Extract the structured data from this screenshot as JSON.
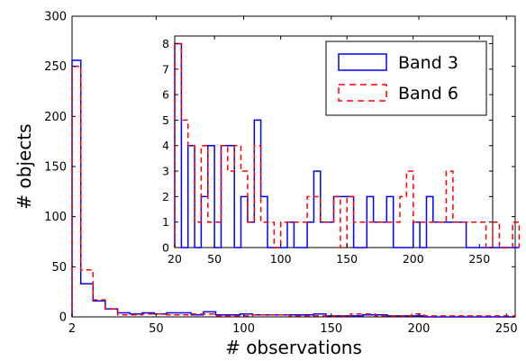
{
  "chart_data": [
    {
      "type": "histogram",
      "panel": "main",
      "xlabel": "# observations",
      "ylabel": "# objects",
      "xlim": [
        2,
        255
      ],
      "ylim": [
        0,
        300
      ],
      "xticks": [
        2,
        50,
        100,
        150,
        200,
        250
      ],
      "yticks": [
        0,
        50,
        100,
        150,
        200,
        250,
        300
      ],
      "bin_width": 7,
      "series": [
        {
          "name": "Band 3",
          "style": "solid",
          "color": "#0000ff",
          "bins": [
            {
              "x0": 2,
              "x1": 7,
              "count": 256
            },
            {
              "x0": 7,
              "x1": 14,
              "count": 33
            },
            {
              "x0": 14,
              "x1": 21,
              "count": 16
            },
            {
              "x0": 21,
              "x1": 28,
              "count": 8
            },
            {
              "x0": 28,
              "x1": 35,
              "count": 4
            },
            {
              "x0": 35,
              "x1": 42,
              "count": 3
            },
            {
              "x0": 42,
              "x1": 49,
              "count": 4
            },
            {
              "x0": 49,
              "x1": 56,
              "count": 3
            },
            {
              "x0": 56,
              "x1": 70,
              "count": 4
            },
            {
              "x0": 70,
              "x1": 77,
              "count": 2
            },
            {
              "x0": 77,
              "x1": 84,
              "count": 5
            },
            {
              "x0": 84,
              "x1": 98,
              "count": 2
            },
            {
              "x0": 98,
              "x1": 105,
              "count": 3
            },
            {
              "x0": 105,
              "x1": 140,
              "count": 2
            },
            {
              "x0": 140,
              "x1": 147,
              "count": 3
            },
            {
              "x0": 147,
              "x1": 168,
              "count": 1
            },
            {
              "x0": 168,
              "x1": 182,
              "count": 2
            },
            {
              "x0": 182,
              "x1": 203,
              "count": 1
            },
            {
              "x0": 203,
              "x1": 255,
              "count": 0
            }
          ]
        },
        {
          "name": "Band 6",
          "style": "dashed",
          "color": "#ff0000",
          "bins": [
            {
              "x0": 2,
              "x1": 7,
              "count": 250
            },
            {
              "x0": 7,
              "x1": 14,
              "count": 47
            },
            {
              "x0": 14,
              "x1": 21,
              "count": 17
            },
            {
              "x0": 21,
              "x1": 28,
              "count": 8
            },
            {
              "x0": 28,
              "x1": 42,
              "count": 2
            },
            {
              "x0": 42,
              "x1": 56,
              "count": 3
            },
            {
              "x0": 56,
              "x1": 70,
              "count": 2
            },
            {
              "x0": 70,
              "x1": 84,
              "count": 3
            },
            {
              "x0": 84,
              "x1": 105,
              "count": 1
            },
            {
              "x0": 105,
              "x1": 126,
              "count": 2
            },
            {
              "x0": 126,
              "x1": 161,
              "count": 1
            },
            {
              "x0": 161,
              "x1": 175,
              "count": 3
            },
            {
              "x0": 175,
              "x1": 196,
              "count": 1
            },
            {
              "x0": 196,
              "x1": 203,
              "count": 3
            },
            {
              "x0": 203,
              "x1": 240,
              "count": 1
            },
            {
              "x0": 240,
              "x1": 255,
              "count": 1
            }
          ]
        }
      ]
    },
    {
      "type": "histogram",
      "panel": "inset",
      "xlim": [
        20,
        260
      ],
      "ylim": [
        0,
        8.3
      ],
      "xticks": [
        20,
        50,
        100,
        150,
        200,
        250
      ],
      "yticks": [
        0,
        1,
        2,
        3,
        4,
        5,
        6,
        7,
        8
      ],
      "bin_width": 5,
      "legend": {
        "position": "top-right",
        "entries": [
          "Band 3",
          "Band 6"
        ]
      },
      "series": [
        {
          "name": "Band 3",
          "style": "solid",
          "color": "#0000ff",
          "values": [
            8,
            0,
            4,
            0,
            2,
            4,
            0,
            4,
            4,
            0,
            2,
            1,
            5,
            2,
            0,
            0,
            0,
            1,
            0,
            0,
            1,
            3,
            1,
            1,
            2,
            2,
            2,
            0,
            0,
            2,
            1,
            1,
            2,
            0,
            0,
            0,
            1,
            0,
            2,
            1,
            1,
            1,
            1,
            1,
            0,
            0,
            0,
            0,
            0,
            0,
            0,
            0
          ]
        },
        {
          "name": "Band 6",
          "style": "dashed",
          "color": "#ff0000",
          "values": [
            8,
            5,
            4,
            1,
            4,
            1,
            1,
            4,
            3,
            4,
            3,
            1,
            4,
            1,
            1,
            0,
            1,
            1,
            1,
            1,
            2,
            2,
            1,
            1,
            2,
            0,
            2,
            1,
            1,
            1,
            1,
            1,
            1,
            1,
            2,
            3,
            1,
            1,
            1,
            1,
            1,
            3,
            1,
            1,
            1,
            1,
            1,
            0,
            1,
            0,
            0,
            1
          ]
        }
      ]
    }
  ]
}
